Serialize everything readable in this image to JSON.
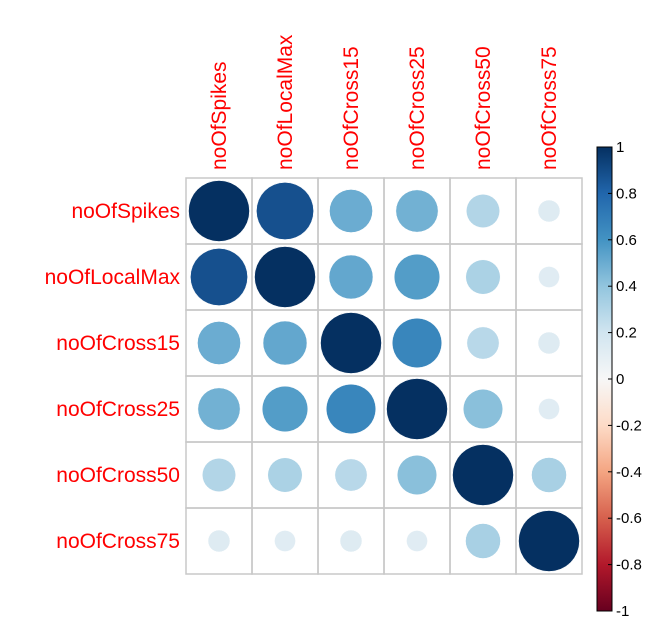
{
  "chart_data": {
    "type": "heatmap",
    "title": "",
    "variables": [
      "noOfSpikes",
      "noOfLocalMax",
      "noOfCross15",
      "noOfCross25",
      "noOfCross50",
      "noOfCross75"
    ],
    "matrix": [
      [
        1.0,
        0.88,
        0.5,
        0.48,
        0.3,
        0.13
      ],
      [
        0.88,
        1.0,
        0.52,
        0.56,
        0.32,
        0.12
      ],
      [
        0.5,
        0.52,
        1.0,
        0.66,
        0.28,
        0.13
      ],
      [
        0.48,
        0.56,
        0.66,
        1.0,
        0.42,
        0.12
      ],
      [
        0.3,
        0.32,
        0.28,
        0.42,
        1.0,
        0.33
      ],
      [
        0.13,
        0.12,
        0.13,
        0.12,
        0.33,
        1.0
      ]
    ],
    "colorbar": {
      "ticks": [
        "1",
        "0.8",
        "0.6",
        "0.4",
        "0.2",
        "0",
        "-0.2",
        "-0.4",
        "-0.6",
        "-0.8",
        "-1"
      ],
      "range": [
        -1,
        1
      ]
    },
    "label_color": "#ff0000",
    "grid": true
  }
}
